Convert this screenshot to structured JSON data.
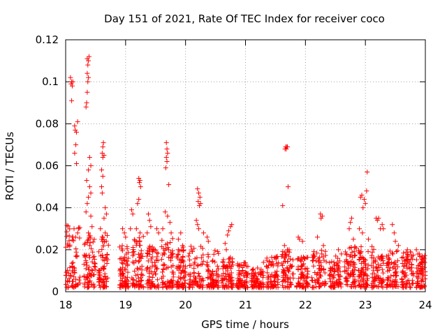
{
  "chart_data": {
    "type": "scatter",
    "title": "Day 151 of 2021, Rate Of TEC Index for receiver coco",
    "xlabel": "GPS time / hours",
    "ylabel": "ROTI / TECUs",
    "xlim": [
      18,
      24
    ],
    "ylim": [
      0,
      0.12
    ],
    "xticks": [
      18,
      19,
      20,
      21,
      22,
      23,
      24
    ],
    "yticks": [
      0,
      0.02,
      0.04,
      0.06,
      0.08,
      0.1,
      0.12
    ],
    "ytick_labels": [
      "0",
      "0.02",
      "0.04",
      "0.06",
      "0.08",
      "0.1",
      "0.12"
    ],
    "grid": true,
    "marker": "+",
    "color": "#ff0000",
    "series": [
      {
        "name": "ROTI",
        "points": [
          [
            18.08,
            0.102
          ],
          [
            18.09,
            0.099
          ],
          [
            18.1,
            0.1
          ],
          [
            18.11,
            0.098
          ],
          [
            18.12,
            0.1
          ],
          [
            18.1,
            0.091
          ],
          [
            18.15,
            0.079
          ],
          [
            18.16,
            0.077
          ],
          [
            18.18,
            0.076
          ],
          [
            18.2,
            0.081
          ],
          [
            18.17,
            0.07
          ],
          [
            18.15,
            0.066
          ],
          [
            18.18,
            0.061
          ],
          [
            18.14,
            0.03
          ],
          [
            18.2,
            0.028
          ],
          [
            18.22,
            0.03
          ],
          [
            18.12,
            0.026
          ],
          [
            18.36,
            0.111
          ],
          [
            18.38,
            0.11
          ],
          [
            18.39,
            0.112
          ],
          [
            18.37,
            0.108
          ],
          [
            18.36,
            0.104
          ],
          [
            18.38,
            0.102
          ],
          [
            18.37,
            0.1
          ],
          [
            18.36,
            0.095
          ],
          [
            18.35,
            0.09
          ],
          [
            18.34,
            0.088
          ],
          [
            18.4,
            0.064
          ],
          [
            18.42,
            0.06
          ],
          [
            18.38,
            0.058
          ],
          [
            18.35,
            0.053
          ],
          [
            18.4,
            0.05
          ],
          [
            18.42,
            0.047
          ],
          [
            18.38,
            0.045
          ],
          [
            18.36,
            0.042
          ],
          [
            18.34,
            0.038
          ],
          [
            18.42,
            0.036
          ],
          [
            18.44,
            0.031
          ],
          [
            18.38,
            0.028
          ],
          [
            18.4,
            0.022
          ],
          [
            18.63,
            0.071
          ],
          [
            18.62,
            0.069
          ],
          [
            18.61,
            0.066
          ],
          [
            18.62,
            0.064
          ],
          [
            18.64,
            0.065
          ],
          [
            18.6,
            0.058
          ],
          [
            18.62,
            0.055
          ],
          [
            18.6,
            0.05
          ],
          [
            18.61,
            0.047
          ],
          [
            18.66,
            0.04
          ],
          [
            18.68,
            0.037
          ],
          [
            18.64,
            0.035
          ],
          [
            18.58,
            0.03
          ],
          [
            18.66,
            0.028
          ],
          [
            18.62,
            0.026
          ],
          [
            18.95,
            0.03
          ],
          [
            18.98,
            0.028
          ],
          [
            19.0,
            0.026
          ],
          [
            19.1,
            0.039
          ],
          [
            19.12,
            0.037
          ],
          [
            19.08,
            0.03
          ],
          [
            19.22,
            0.054
          ],
          [
            19.23,
            0.052
          ],
          [
            19.24,
            0.053
          ],
          [
            19.25,
            0.05
          ],
          [
            19.2,
            0.042
          ],
          [
            19.22,
            0.044
          ],
          [
            19.18,
            0.03
          ],
          [
            19.24,
            0.028
          ],
          [
            19.38,
            0.037
          ],
          [
            19.4,
            0.034
          ],
          [
            19.42,
            0.031
          ],
          [
            19.36,
            0.028
          ],
          [
            19.52,
            0.03
          ],
          [
            19.55,
            0.028
          ],
          [
            19.68,
            0.071
          ],
          [
            19.69,
            0.068
          ],
          [
            19.7,
            0.066
          ],
          [
            19.68,
            0.064
          ],
          [
            19.69,
            0.062
          ],
          [
            19.67,
            0.059
          ],
          [
            19.72,
            0.051
          ],
          [
            19.66,
            0.038
          ],
          [
            19.7,
            0.036
          ],
          [
            19.74,
            0.033
          ],
          [
            19.62,
            0.03
          ],
          [
            19.76,
            0.028
          ],
          [
            19.88,
            0.025
          ],
          [
            19.92,
            0.028
          ],
          [
            19.95,
            0.022
          ],
          [
            20.18,
            0.034
          ],
          [
            20.2,
            0.032
          ],
          [
            20.22,
            0.03
          ],
          [
            20.2,
            0.049
          ],
          [
            20.22,
            0.047
          ],
          [
            20.24,
            0.045
          ],
          [
            20.21,
            0.043
          ],
          [
            20.23,
            0.041
          ],
          [
            20.25,
            0.042
          ],
          [
            20.36,
            0.026
          ],
          [
            20.38,
            0.024
          ],
          [
            20.3,
            0.028
          ],
          [
            20.66,
            0.023
          ],
          [
            20.68,
            0.02
          ],
          [
            20.72,
            0.029
          ],
          [
            20.75,
            0.031
          ],
          [
            20.77,
            0.032
          ],
          [
            20.7,
            0.027
          ],
          [
            21.3,
            0.014
          ],
          [
            21.35,
            0.012
          ],
          [
            21.62,
            0.041
          ],
          [
            21.66,
            0.068
          ],
          [
            21.67,
            0.069
          ],
          [
            21.68,
            0.068
          ],
          [
            21.69,
            0.069
          ],
          [
            21.7,
            0.069
          ],
          [
            21.71,
            0.05
          ],
          [
            21.65,
            0.022
          ],
          [
            21.7,
            0.02
          ],
          [
            21.88,
            0.026
          ],
          [
            21.9,
            0.025
          ],
          [
            21.95,
            0.024
          ],
          [
            22.2,
            0.026
          ],
          [
            22.25,
            0.037
          ],
          [
            22.26,
            0.035
          ],
          [
            22.28,
            0.036
          ],
          [
            22.3,
            0.022
          ],
          [
            22.55,
            0.02
          ],
          [
            22.6,
            0.018
          ],
          [
            22.75,
            0.033
          ],
          [
            22.77,
            0.035
          ],
          [
            22.73,
            0.03
          ],
          [
            22.8,
            0.025
          ],
          [
            22.92,
            0.045
          ],
          [
            22.94,
            0.046
          ],
          [
            22.96,
            0.04
          ],
          [
            22.98,
            0.044
          ],
          [
            23.0,
            0.042
          ],
          [
            23.02,
            0.048
          ],
          [
            23.03,
            0.057
          ],
          [
            22.9,
            0.03
          ],
          [
            22.95,
            0.028
          ],
          [
            23.05,
            0.025
          ],
          [
            23.18,
            0.035
          ],
          [
            23.2,
            0.034
          ],
          [
            23.22,
            0.035
          ],
          [
            23.25,
            0.03
          ],
          [
            23.28,
            0.032
          ],
          [
            23.3,
            0.03
          ],
          [
            23.45,
            0.032
          ],
          [
            23.48,
            0.028
          ],
          [
            23.5,
            0.024
          ],
          [
            23.55,
            0.022
          ],
          [
            23.7,
            0.02
          ],
          [
            23.75,
            0.019
          ],
          [
            23.85,
            0.02
          ],
          [
            23.9,
            0.018
          ],
          [
            23.95,
            0.017
          ]
        ]
      }
    ]
  }
}
